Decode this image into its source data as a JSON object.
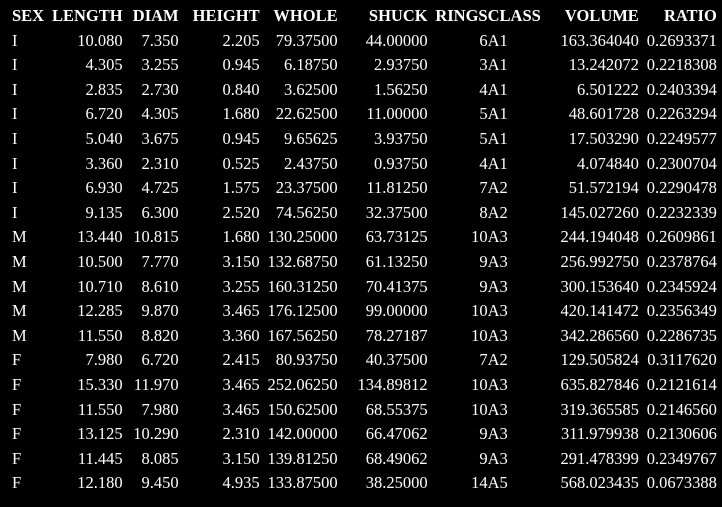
{
  "table": {
    "headers": [
      "SEX",
      "LENGTH",
      "DIAM",
      "HEIGHT",
      "WHOLE",
      "SHUCK",
      "RINGS",
      "CLASS",
      "VOLUME",
      "RATIO"
    ],
    "rows": [
      [
        "I",
        "10.080",
        "7.350",
        "2.205",
        "79.37500",
        "44.00000",
        "6",
        "A1",
        "163.364040",
        "0.2693371"
      ],
      [
        "I",
        "4.305",
        "3.255",
        "0.945",
        "6.18750",
        "2.93750",
        "3",
        "A1",
        "13.242072",
        "0.2218308"
      ],
      [
        "I",
        "2.835",
        "2.730",
        "0.840",
        "3.62500",
        "1.56250",
        "4",
        "A1",
        "6.501222",
        "0.2403394"
      ],
      [
        "I",
        "6.720",
        "4.305",
        "1.680",
        "22.62500",
        "11.00000",
        "5",
        "A1",
        "48.601728",
        "0.2263294"
      ],
      [
        "I",
        "5.040",
        "3.675",
        "0.945",
        "9.65625",
        "3.93750",
        "5",
        "A1",
        "17.503290",
        "0.2249577"
      ],
      [
        "I",
        "3.360",
        "2.310",
        "0.525",
        "2.43750",
        "0.93750",
        "4",
        "A1",
        "4.074840",
        "0.2300704"
      ],
      [
        "I",
        "6.930",
        "4.725",
        "1.575",
        "23.37500",
        "11.81250",
        "7",
        "A2",
        "51.572194",
        "0.2290478"
      ],
      [
        "I",
        "9.135",
        "6.300",
        "2.520",
        "74.56250",
        "32.37500",
        "8",
        "A2",
        "145.027260",
        "0.2232339"
      ],
      [
        "M",
        "13.440",
        "10.815",
        "1.680",
        "130.25000",
        "63.73125",
        "10",
        "A3",
        "244.194048",
        "0.2609861"
      ],
      [
        "M",
        "10.500",
        "7.770",
        "3.150",
        "132.68750",
        "61.13250",
        "9",
        "A3",
        "256.992750",
        "0.2378764"
      ],
      [
        "M",
        "10.710",
        "8.610",
        "3.255",
        "160.31250",
        "70.41375",
        "9",
        "A3",
        "300.153640",
        "0.2345924"
      ],
      [
        "M",
        "12.285",
        "9.870",
        "3.465",
        "176.12500",
        "99.00000",
        "10",
        "A3",
        "420.141472",
        "0.2356349"
      ],
      [
        "M",
        "11.550",
        "8.820",
        "3.360",
        "167.56250",
        "78.27187",
        "10",
        "A3",
        "342.286560",
        "0.2286735"
      ],
      [
        "F",
        "7.980",
        "6.720",
        "2.415",
        "80.93750",
        "40.37500",
        "7",
        "A2",
        "129.505824",
        "0.3117620"
      ],
      [
        "F",
        "15.330",
        "11.970",
        "3.465",
        "252.06250",
        "134.89812",
        "10",
        "A3",
        "635.827846",
        "0.2121614"
      ],
      [
        "F",
        "11.550",
        "7.980",
        "3.465",
        "150.62500",
        "68.55375",
        "10",
        "A3",
        "319.365585",
        "0.2146560"
      ],
      [
        "F",
        "13.125",
        "10.290",
        "2.310",
        "142.00000",
        "66.47062",
        "9",
        "A3",
        "311.979938",
        "0.2130606"
      ],
      [
        "F",
        "11.445",
        "8.085",
        "3.150",
        "139.81250",
        "68.49062",
        "9",
        "A3",
        "291.478399",
        "0.2349767"
      ],
      [
        "F",
        "12.180",
        "9.450",
        "4.935",
        "133.87500",
        "38.25000",
        "14",
        "A5",
        "568.023435",
        "0.0673388"
      ]
    ]
  }
}
